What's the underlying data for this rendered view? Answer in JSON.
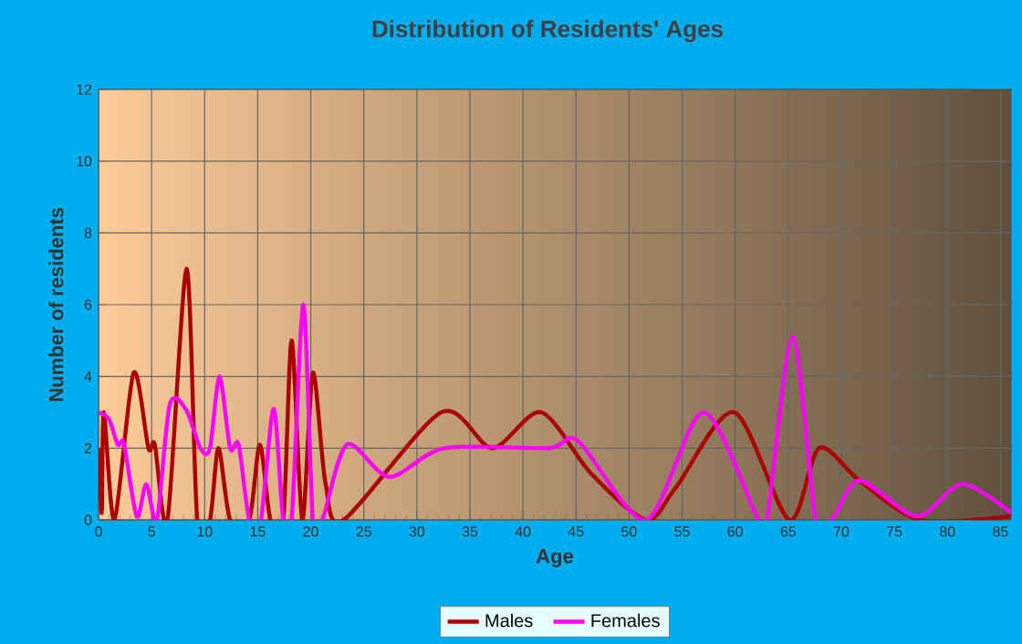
{
  "chart_data": {
    "type": "line",
    "title": "Distribution of Residents' Ages",
    "xlabel": "Age",
    "ylabel": "Number of residents",
    "xlim": [
      0,
      86
    ],
    "ylim": [
      0,
      12
    ],
    "xticks": [
      0,
      5,
      10,
      15,
      20,
      25,
      30,
      35,
      40,
      45,
      50,
      55,
      60,
      65,
      70,
      75,
      80,
      85
    ],
    "yticks": [
      0,
      2,
      4,
      6,
      8,
      10,
      12
    ],
    "grid": true,
    "legend": "bottom",
    "series": [
      {
        "name": "Males",
        "color": "#aa0000",
        "x": [
          0,
          0.3,
          0.5,
          1.5,
          3.3,
          4.7,
          5.3,
          6.5,
          8.3,
          9.3,
          10.5,
          11.3,
          12.4,
          14.2,
          15.2,
          16.2,
          17.4,
          18.2,
          19.2,
          20.2,
          21.4,
          23.1,
          32.3,
          37.1,
          41.7,
          46.4,
          51.6,
          54.4,
          59.9,
          65.1,
          67.9,
          71.7,
          77.4,
          86
        ],
        "values": [
          2,
          0.2,
          3,
          0,
          4.1,
          2,
          2.1,
          0,
          7,
          0,
          0,
          2,
          0,
          0,
          2.1,
          0,
          0,
          5,
          0,
          4.1,
          1,
          0,
          3,
          2,
          3,
          1.3,
          0,
          0.9,
          3,
          0,
          2,
          1.1,
          0,
          0.1
        ]
      },
      {
        "name": "Females",
        "color": "#ff00ff",
        "x": [
          0,
          1,
          1.8,
          2.4,
          3.6,
          4.5,
          5.5,
          6.7,
          8.2,
          9.6,
          10.5,
          11.4,
          12.4,
          13.2,
          14.2,
          15.3,
          16.5,
          17.4,
          18.2,
          19.3,
          20.2,
          21.1,
          23.4,
          27.4,
          32.6,
          42.4,
          45.2,
          51.6,
          57,
          62.2,
          63,
          65.4,
          67.6,
          69.1,
          71.7,
          77.1,
          81.4,
          86
        ],
        "values": [
          3,
          2.8,
          2.1,
          2.1,
          0.1,
          1,
          0,
          3.2,
          3.1,
          2,
          2,
          4,
          2,
          2.1,
          0,
          0,
          3.1,
          0,
          0,
          6,
          0,
          0,
          2.1,
          1.2,
          2,
          2,
          2.2,
          0,
          3,
          0,
          0,
          5.1,
          0,
          0,
          1.1,
          0.1,
          1,
          0.2
        ]
      }
    ]
  }
}
